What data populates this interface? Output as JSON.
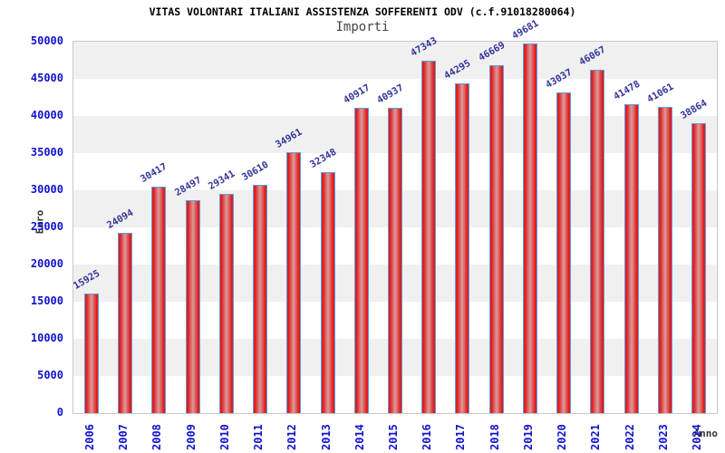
{
  "title": "VITAS VOLONTARI ITALIANI ASSISTENZA SOFFERENTI ODV (c.f.91018280064)",
  "subtitle": "Importi",
  "chart_data": {
    "type": "bar",
    "title": "VITAS VOLONTARI ITALIANI ASSISTENZA SOFFERENTI ODV (c.f.91018280064)",
    "subtitle": "Importi",
    "xlabel": "Anno",
    "ylabel": "Euro",
    "categories": [
      "2006",
      "2007",
      "2008",
      "2009",
      "2010",
      "2011",
      "2012",
      "2013",
      "2014",
      "2015",
      "2016",
      "2017",
      "2018",
      "2019",
      "2020",
      "2021",
      "2022",
      "2023",
      "2024"
    ],
    "values": [
      15925,
      24094,
      30417,
      28497,
      29341,
      30610,
      34961,
      32348,
      40917,
      40937,
      47343,
      44295,
      46669,
      49681,
      43037,
      46067,
      41478,
      41061,
      38864
    ],
    "ylim": [
      0,
      50000
    ],
    "yticks": [
      0,
      5000,
      10000,
      15000,
      20000,
      25000,
      30000,
      35000,
      40000,
      45000,
      50000
    ],
    "grid": "alternating horizontal bands every 5000",
    "legend": "none",
    "colors": {
      "bar_fill_edge": "#e31b1b",
      "bar_fill_center": "#d99c9c",
      "bar_border": "#55a0e6",
      "tick_label": "#1212cc",
      "value_label": "#333399",
      "axis_title": "#333333",
      "band_gray": "#f0f0f0",
      "band_white": "#ffffff",
      "plot_border": "#c9c9c9"
    }
  }
}
